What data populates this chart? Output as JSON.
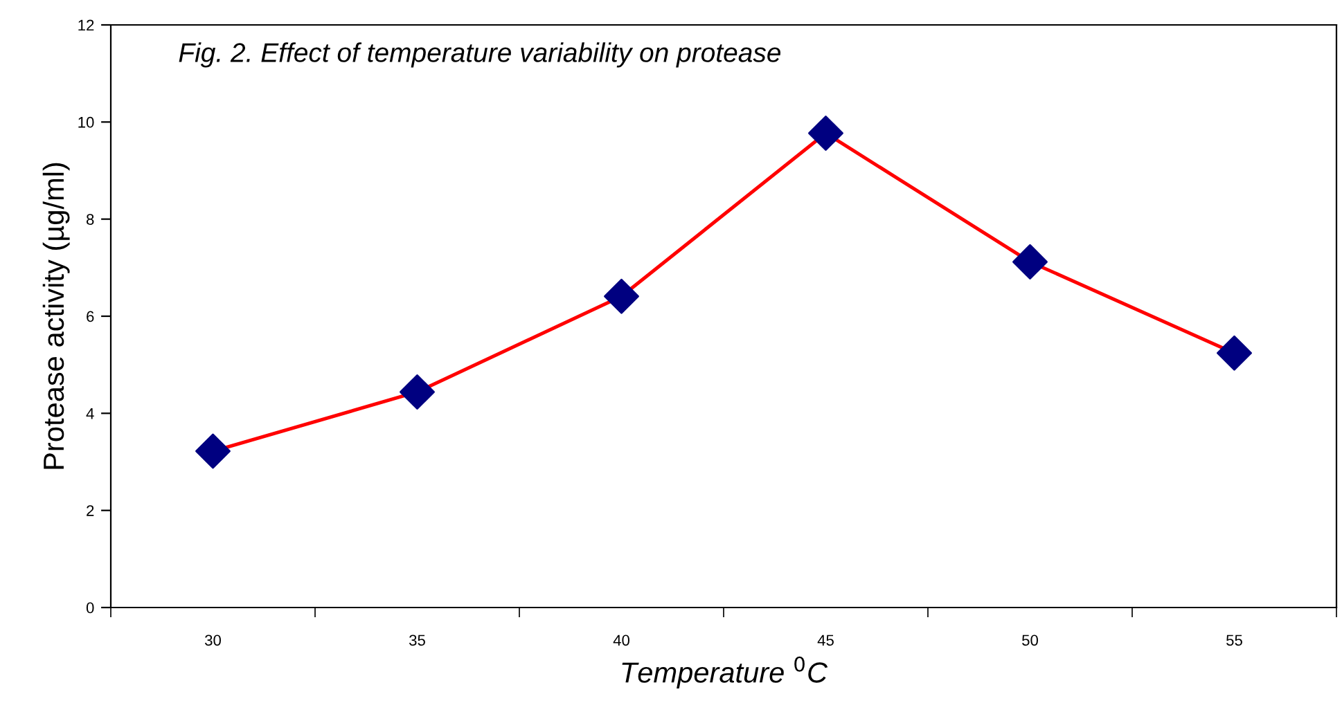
{
  "chart_data": {
    "type": "line",
    "title": "Fig. 2. Effect of temperature variability on protease",
    "xlabel": "Temperature $^{0}$C",
    "ylabel": "Protease activity (µg/ml)",
    "categories": [
      "30",
      "35",
      "40",
      "45",
      "50",
      "55"
    ],
    "series": [
      {
        "color": "#ff0000",
        "colors": [
          "#000080",
          "#000080",
          "#000080",
          "#000080",
          "#000080",
          "#000080"
        ],
        "values": [
          3.22,
          4.44,
          6.41,
          9.77,
          7.12,
          5.24
        ]
      }
    ],
    "ylim": [
      0,
      12
    ],
    "yticks": [
      0,
      2,
      4,
      6,
      8,
      10,
      12
    ],
    "marker": "diamond",
    "line_style": "solid",
    "grid": false,
    "legend": false
  }
}
